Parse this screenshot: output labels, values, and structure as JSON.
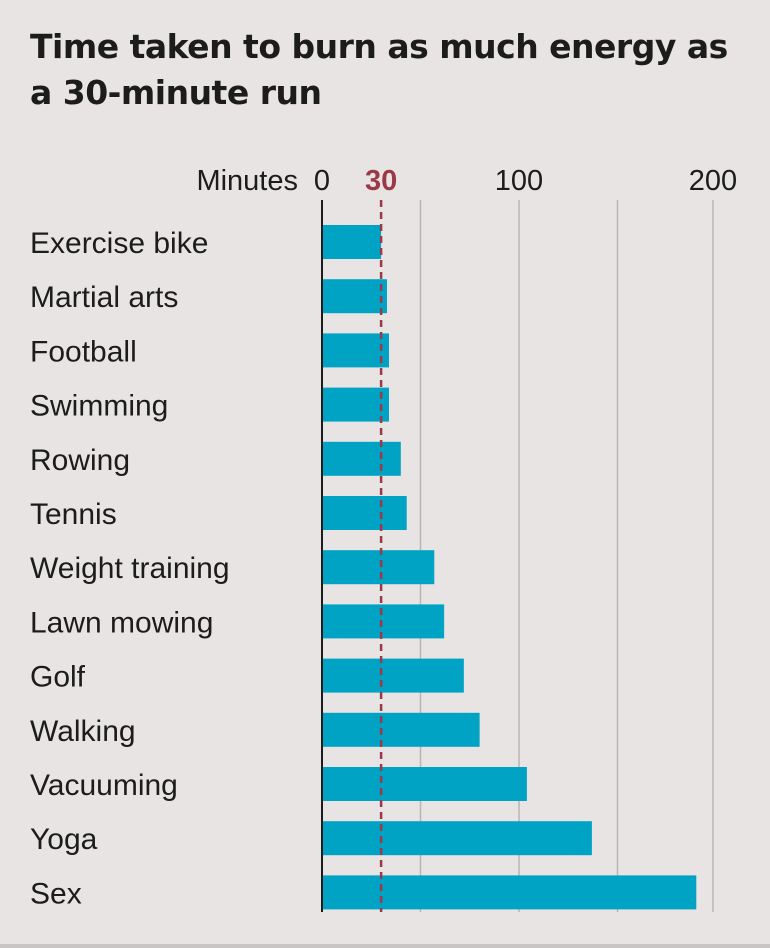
{
  "chart_data": {
    "type": "bar",
    "orientation": "horizontal",
    "title": "Time taken to burn as much energy as a 30-minute run",
    "xlabel": "Minutes",
    "x_scale": "log",
    "xlim": [
      0,
      200
    ],
    "ticks": [
      {
        "value": 0,
        "label": "0"
      },
      {
        "value": 100,
        "label": "100"
      },
      {
        "value": 200,
        "label": "200"
      }
    ],
    "reference_line": {
      "value": 30,
      "label": "30",
      "color": "#9a3a48",
      "style": "dashed"
    },
    "categories": [
      "Exercise bike",
      "Martial arts",
      "Football",
      "Swimming",
      "Rowing",
      "Tennis",
      "Weight training",
      "Lawn mowing",
      "Golf",
      "Walking",
      "Vacuuming",
      "Yoga",
      "Sex"
    ],
    "values": [
      30,
      33,
      34,
      34,
      40,
      43,
      57,
      62,
      72,
      80,
      104,
      137,
      190
    ],
    "bar_color": "#00a3c4",
    "gridlines": [
      50,
      100,
      150,
      200
    ],
    "grid": true
  }
}
